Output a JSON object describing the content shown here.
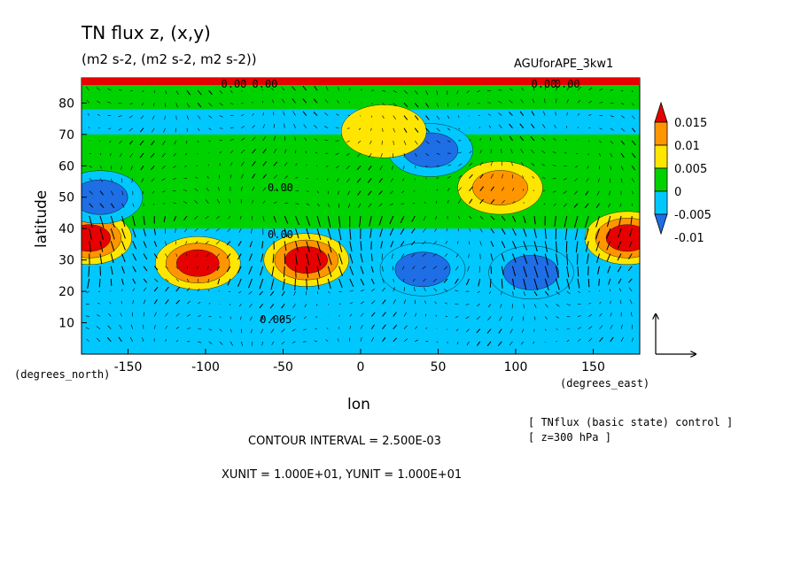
{
  "chart_data": {
    "type": "heatmap",
    "title": "TN flux z, (x,y)",
    "subtitle": "(m2 s-2, (m2 s-2, m2 s-2))",
    "dataset_label": "AGUforAPE_3kw1",
    "xlabel": "lon",
    "ylabel": "latitude",
    "x_unit_label": "(degrees_east)",
    "y_unit_label": "(degrees_north)",
    "xlim": [
      -180,
      180
    ],
    "ylim": [
      0,
      88
    ],
    "x_ticks": [
      -150,
      -100,
      -50,
      0,
      50,
      100,
      150
    ],
    "x_tick_labels": [
      "-150",
      "-100",
      "-50",
      "0",
      "50",
      "100",
      "150"
    ],
    "y_ticks": [
      10,
      20,
      30,
      40,
      50,
      60,
      70,
      80
    ],
    "y_tick_labels": [
      "10",
      "20",
      "30",
      "40",
      "50",
      "60",
      "70",
      "80"
    ],
    "colorbar": {
      "levels": [
        -0.01,
        -0.005,
        0,
        0.005,
        0.01,
        0.015
      ],
      "labels": [
        "-0.01",
        "-0.005",
        "0",
        "0.005",
        "0.01",
        "0.015"
      ],
      "colors": [
        "#1e6ee6",
        "#00c8ff",
        "#00d200",
        "#ffe600",
        "#ff9600",
        "#e60000"
      ]
    },
    "contour_labels": [
      "0.00",
      "0.00",
      "0.00",
      "0.00",
      "0.00",
      "0.00",
      "0.005"
    ],
    "anomalies": [
      {
        "lon": -35,
        "lat": 30,
        "value": 0.015,
        "sign": "positive"
      },
      {
        "lon": -105,
        "lat": 29,
        "value": 0.015,
        "sign": "positive"
      },
      {
        "lon": -175,
        "lat": 37,
        "value": 0.015,
        "sign": "positive"
      },
      {
        "lon": 172,
        "lat": 37,
        "value": 0.015,
        "sign": "positive"
      },
      {
        "lon": 40,
        "lat": 27,
        "value": -0.01,
        "sign": "negative"
      },
      {
        "lon": 110,
        "lat": 26,
        "value": -0.01,
        "sign": "negative"
      },
      {
        "lon": 45,
        "lat": 65,
        "value": -0.01,
        "sign": "negative"
      },
      {
        "lon": -168,
        "lat": 50,
        "value": -0.01,
        "sign": "negative"
      },
      {
        "lon": 90,
        "lat": 53,
        "value": 0.01,
        "sign": "positive"
      },
      {
        "lon": 15,
        "lat": 71,
        "value": 0.005,
        "sign": "positive"
      }
    ],
    "grid": false,
    "legend_placement": "right"
  },
  "annotations": {
    "contour_interval": "CONTOUR INTERVAL = 2.500E-03",
    "units_line": "XUNIT = 1.000E+01, YUNIT = 1.000E+01",
    "footnote_line1": "[ TNflux (basic state) control ]",
    "footnote_line2": "[ z=300 hPa ]"
  }
}
